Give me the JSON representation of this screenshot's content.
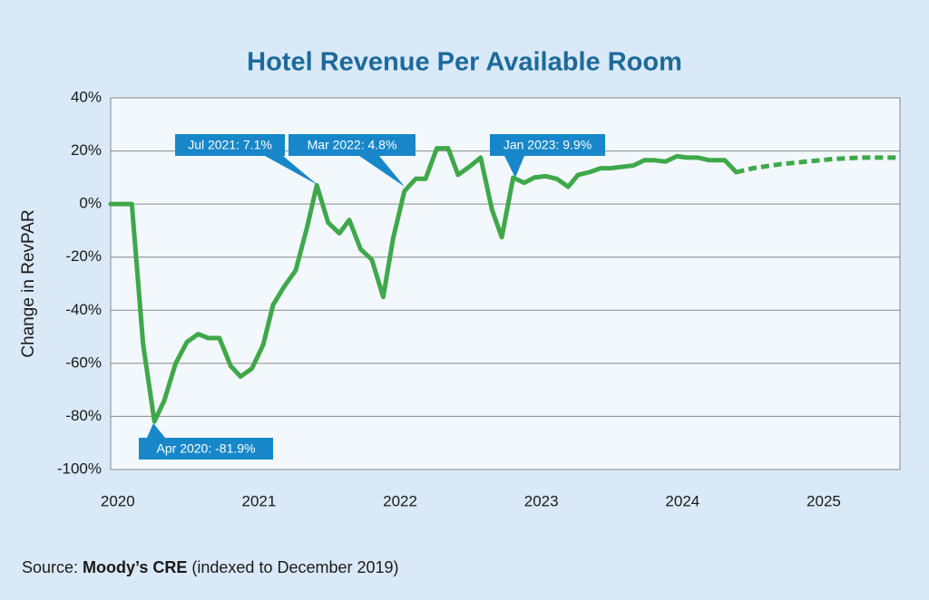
{
  "chart_data": {
    "type": "line",
    "title": "Hotel Revenue Per Available Room",
    "y_label": "Change in RevPAR",
    "xlim": [
      2019.95,
      2025.54
    ],
    "xticks": [
      2020,
      2021,
      2022,
      2023,
      2024,
      2025
    ],
    "ylim": [
      -100,
      40
    ],
    "yticks": [
      {
        "value": -100,
        "label": "-100%"
      },
      {
        "value": -80,
        "label": "-80%"
      },
      {
        "value": -60,
        "label": "-60%"
      },
      {
        "value": -40,
        "label": "-40%"
      },
      {
        "value": -20,
        "label": "-20%"
      },
      {
        "value": 0,
        "label": "0%"
      },
      {
        "value": 20,
        "label": "20%"
      },
      {
        "value": 40,
        "label": "40%"
      }
    ],
    "grid": true,
    "series": [
      {
        "color": "#3fa84a",
        "dashed": false,
        "x": [
          2019.95,
          2020.03,
          2020.1,
          2020.18,
          2020.26,
          2020.33,
          2020.41,
          2020.49,
          2020.57,
          2020.64,
          2020.72,
          2020.8,
          2020.87,
          2020.95,
          2021.03,
          2021.1,
          2021.18,
          2021.26,
          2021.34,
          2021.41,
          2021.49,
          2021.57,
          2021.64,
          2021.72,
          2021.8,
          2021.88,
          2021.95,
          2022.03,
          2022.11,
          2022.18,
          2022.26,
          2022.34,
          2022.41,
          2022.49,
          2022.57,
          2022.65,
          2022.72,
          2022.8,
          2022.88,
          2022.95,
          2023.03,
          2023.11,
          2023.19,
          2023.26,
          2023.34,
          2023.42,
          2023.49,
          2023.57,
          2023.65,
          2023.73,
          2023.8,
          2023.88,
          2023.96,
          2024.03,
          2024.11,
          2024.19,
          2024.26,
          2024.3,
          2024.38
        ],
        "values": [
          0,
          0,
          0,
          -53,
          -81.9,
          -74,
          -60,
          -52,
          -49,
          -50.5,
          -50.5,
          -61,
          -65,
          -62,
          -53,
          -38,
          -31,
          -25,
          -9,
          7.1,
          -7,
          -11,
          -6,
          -17,
          -21,
          -35,
          -13,
          4.8,
          9.5,
          9.5,
          21,
          21,
          11,
          14,
          17.5,
          -2,
          -12.5,
          9.9,
          8,
          10,
          10.5,
          9.5,
          6.5,
          11,
          12,
          13.5,
          13.5,
          14,
          14.5,
          16.5,
          16.5,
          16,
          18,
          17.5,
          17.5,
          16.5,
          16.5,
          16.5,
          12
        ]
      },
      {
        "color": "#3fa84a",
        "dashed": true,
        "x": [
          2024.38,
          2024.5,
          2024.69,
          2024.88,
          2025.07,
          2025.27,
          2025.52
        ],
        "values": [
          12,
          13.5,
          15,
          16,
          17,
          17.5,
          17.5
        ]
      }
    ],
    "annotations": [
      {
        "text": "Jul 2021: 7.1%"
      },
      {
        "text": "Mar 2022: 4.8%"
      },
      {
        "text": "Jan 2023: 9.9%"
      },
      {
        "text": "Apr 2020: -81.9%"
      }
    ]
  },
  "source": {
    "prefix": "Source: ",
    "name": "Moody’s CRE",
    "suffix": " (indexed to December 2019)"
  }
}
